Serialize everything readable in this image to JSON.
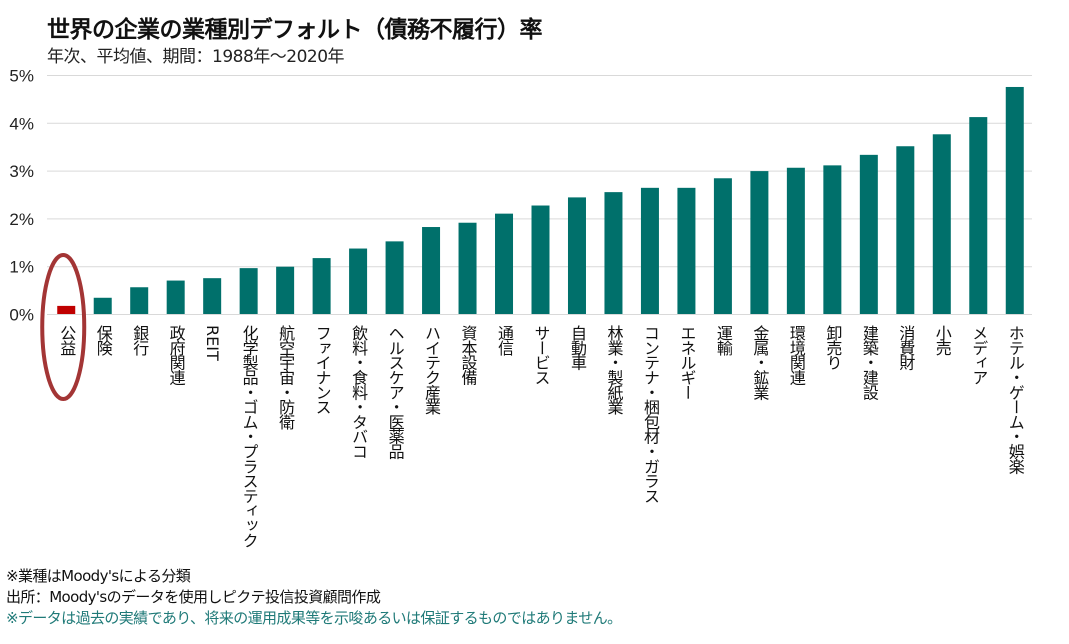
{
  "header": {
    "title": "世界の企業の業種別デフォルト（債務不履行）率",
    "subtitle": "年次、平均値、期間：1988年～2020年"
  },
  "colors": {
    "bar": "#00706b",
    "highlight_bar": "#c00000",
    "highlight_ellipse": "#a33535",
    "grid": "#d9d9d9"
  },
  "chart_data": {
    "type": "bar",
    "title": "世界の企業の業種別デフォルト（債務不履行）率",
    "subtitle": "年次、平均値、期間：1988年～2020年",
    "xlabel": "",
    "ylabel": "",
    "ylim": [
      0,
      5
    ],
    "yticks": [
      0,
      1,
      2,
      3,
      4,
      5
    ],
    "ytick_labels": [
      "0%",
      "1%",
      "2%",
      "3%",
      "4%",
      "5%"
    ],
    "grid": true,
    "label_orientation": "vertical",
    "highlighted_category": "公益",
    "categories": [
      "公益",
      "保険",
      "銀行",
      "政府関連",
      "REIT",
      "化学製品・ゴム・プラスティック",
      "航空宇宙・防衛",
      "ファイナンス",
      "飲料・食料・タバコ",
      "ヘルスケア・医薬品",
      "ハイテク産業",
      "資本設備",
      "通信",
      "サービス",
      "自動車",
      "林業・製紙業",
      "コンテナ・梱包材・ガラス",
      "エネルギー",
      "運輸",
      "金属・鉱業",
      "環境関連",
      "卸売り",
      "建築・建設",
      "消費財",
      "小売",
      "メディア",
      "ホテル・ゲーム・娯楽"
    ],
    "values": [
      0.18,
      0.35,
      0.57,
      0.71,
      0.76,
      0.97,
      1.0,
      1.18,
      1.38,
      1.53,
      1.83,
      1.92,
      2.11,
      2.28,
      2.45,
      2.56,
      2.65,
      2.65,
      2.85,
      3.0,
      3.07,
      3.12,
      3.34,
      3.52,
      3.77,
      4.13,
      4.76
    ],
    "unit": "%"
  },
  "footnotes": [
    "※業種はMoody'sによる分類",
    "出所：Moody'sのデータを使用しピクテ投信投資顧問作成",
    "※データは過去の実績であり、将来の運用成果等を示唆あるいは保証するものではありません。"
  ]
}
